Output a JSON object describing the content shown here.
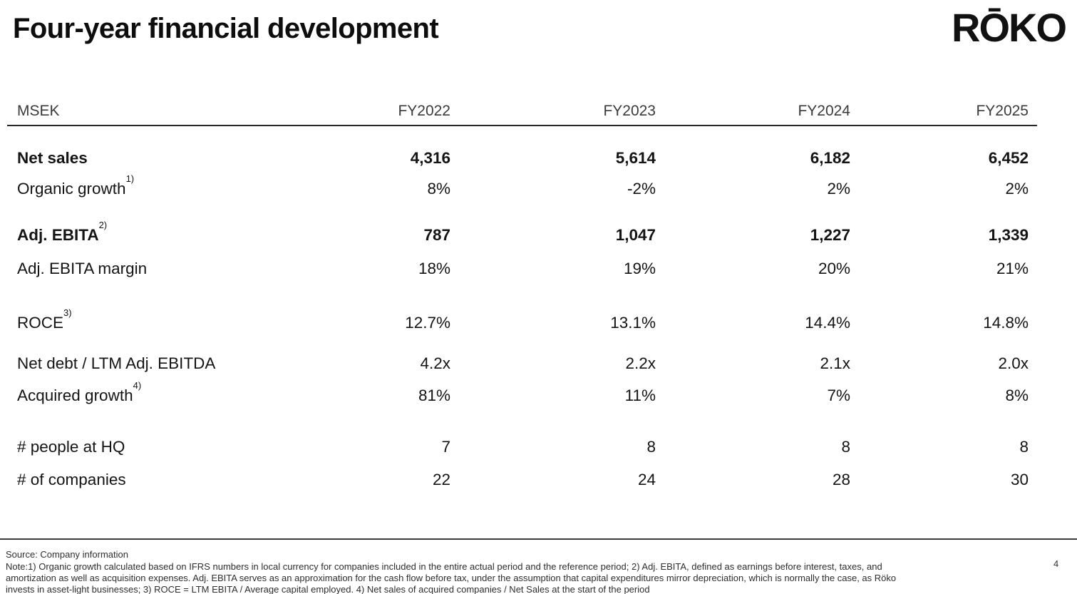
{
  "header": {
    "title": "Four-year financial development",
    "logo": "RŌKO"
  },
  "table": {
    "unit_label": "MSEK",
    "columns": [
      "FY2022",
      "FY2023",
      "FY2024",
      "FY2025"
    ],
    "rows": [
      {
        "label": "Net sales",
        "values": [
          "4,316",
          "5,614",
          "6,182",
          "6,452"
        ]
      },
      {
        "label": "Organic growth",
        "sup": "1)",
        "values": [
          "8%",
          "-2%",
          "2%",
          "2%"
        ]
      },
      {
        "label": "Adj. EBITA",
        "sup": "2)",
        "values": [
          "787",
          "1,047",
          "1,227",
          "1,339"
        ]
      },
      {
        "label": "Adj. EBITA margin",
        "values": [
          "18%",
          "19%",
          "20%",
          "21%"
        ]
      },
      {
        "label": "ROCE",
        "sup": "3)",
        "values": [
          "12.7%",
          "13.1%",
          "14.4%",
          "14.8%"
        ]
      },
      {
        "label": "Net debt / LTM Adj. EBITDA",
        "values": [
          "4.2x",
          "2.2x",
          "2.1x",
          "2.0x"
        ]
      },
      {
        "label": "Acquired growth",
        "sup": "4)",
        "values": [
          "81%",
          "11%",
          "7%",
          "8%"
        ]
      },
      {
        "label": "# people at HQ",
        "values": [
          "7",
          "8",
          "8",
          "8"
        ]
      },
      {
        "label": "# of companies",
        "values": [
          "22",
          "24",
          "28",
          "30"
        ]
      }
    ]
  },
  "footer": {
    "source": "Source: Company information",
    "note_lines": [
      "Note:1) Organic growth calculated based on IFRS numbers in local currency for companies included in the entire actual period and the reference period; 2) Adj. EBITA, defined as earnings before interest, taxes, and",
      "amortization as well as acquisition expenses. Adj. EBITA serves as an approximation for the cash flow before tax, under the assumption that capital expenditures mirror depreciation, which is normally the case, as Röko",
      "invests in asset-light businesses; 3) ROCE = LTM EBITA / Average capital employed. 4) Net sales of acquired companies / Net Sales at the start of the period"
    ],
    "page_number": "4"
  },
  "colors": {
    "text": "#141414",
    "muted_header": "#3a3a3a",
    "rule": "#262626",
    "background": "#ffffff"
  }
}
